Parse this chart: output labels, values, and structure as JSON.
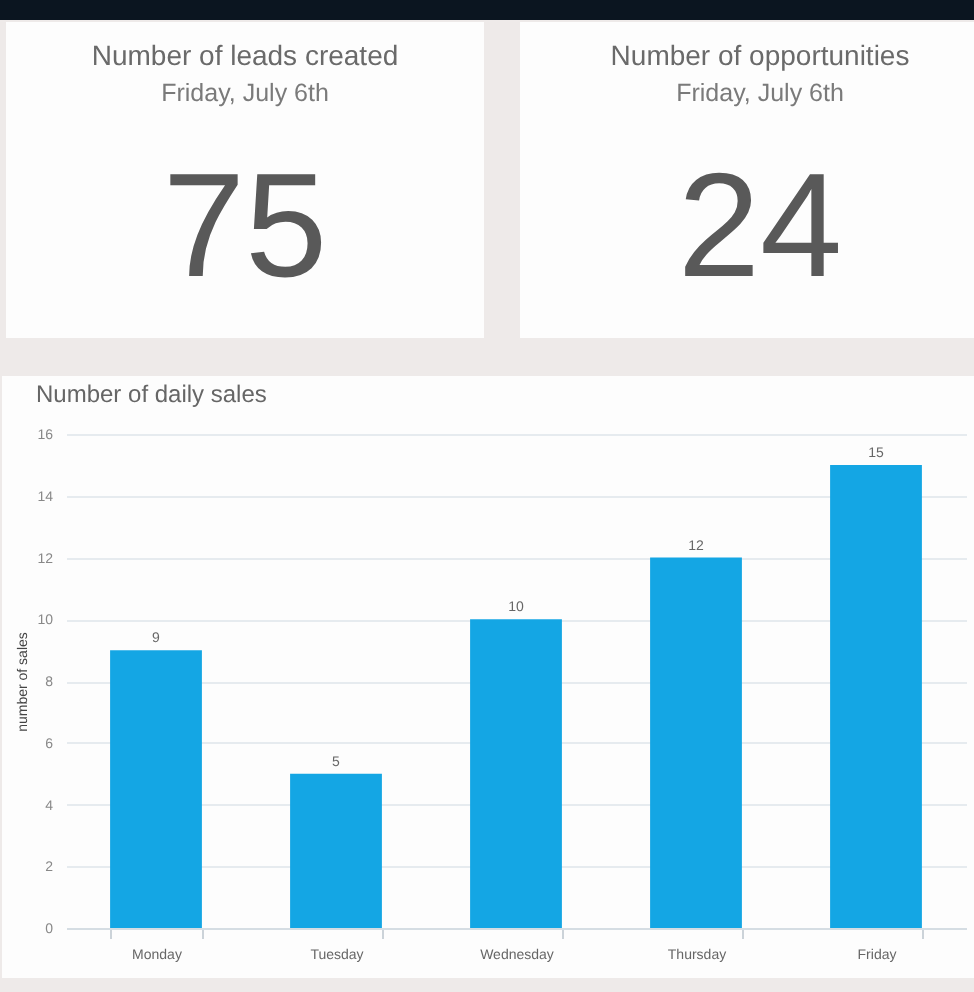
{
  "chart_data": [
    {
      "type": "other",
      "title": "Number of leads created",
      "subtitle": "Friday, July 6th",
      "values": [
        75
      ],
      "data_labels": true
    },
    {
      "type": "other",
      "title": "Number of opportunities",
      "subtitle": "Friday, July 6th",
      "values": [
        24
      ],
      "data_labels": true
    },
    {
      "type": "bar",
      "title": "Number of daily sales",
      "ylabel": "number of sales",
      "categories": [
        "Monday",
        "Tuesday",
        "Wednesday",
        "Thursday",
        "Friday"
      ],
      "values": [
        9,
        5,
        10,
        12,
        15
      ],
      "color": "#14a6e4",
      "ylim": [
        0,
        16
      ],
      "yticks": [
        0,
        2,
        4,
        6,
        8,
        10,
        12,
        14,
        16
      ],
      "grid": "y",
      "data_labels": true
    }
  ]
}
